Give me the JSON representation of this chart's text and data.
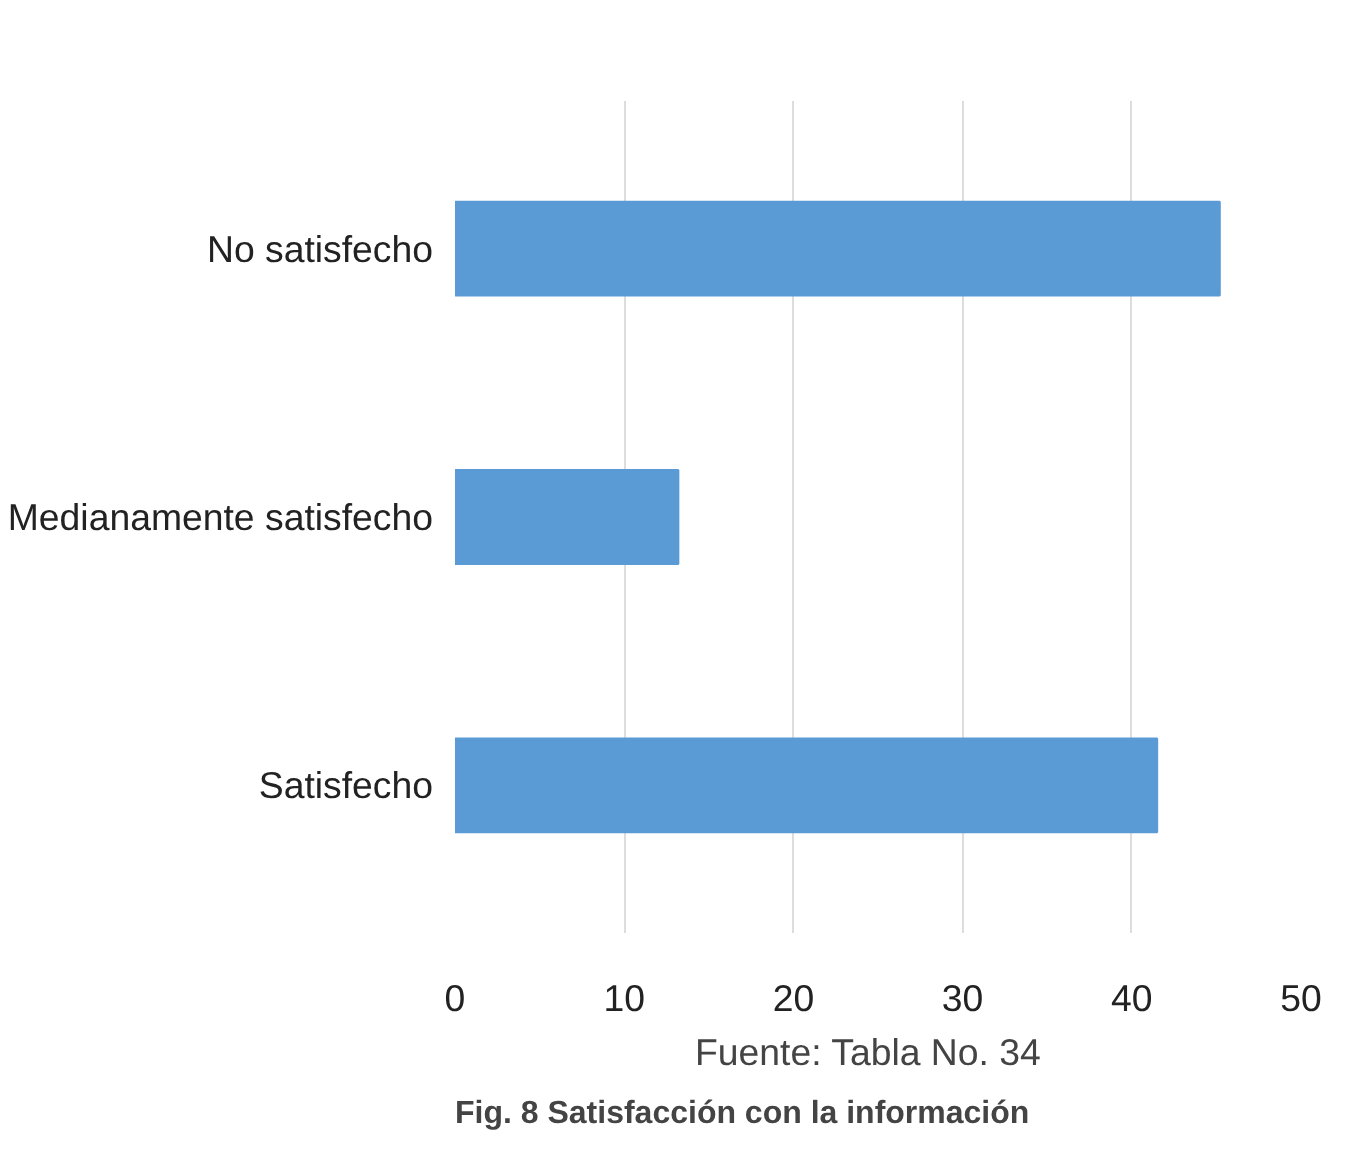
{
  "chart_data": {
    "type": "bar",
    "orientation": "horizontal",
    "title": "Fig. 8 Satisfacción con la información",
    "annotations": [
      "Fuente: Tabla No. 34"
    ],
    "categories": [
      "No satisfecho",
      "Medianamente satisfecho",
      "Satisfecho"
    ],
    "values": [
      45.2,
      13.2,
      41.5
    ],
    "color": "#5b9bd5",
    "xlim": [
      0,
      50
    ],
    "xticks": [
      0,
      10,
      20,
      30,
      40,
      50
    ],
    "grid": "x"
  }
}
